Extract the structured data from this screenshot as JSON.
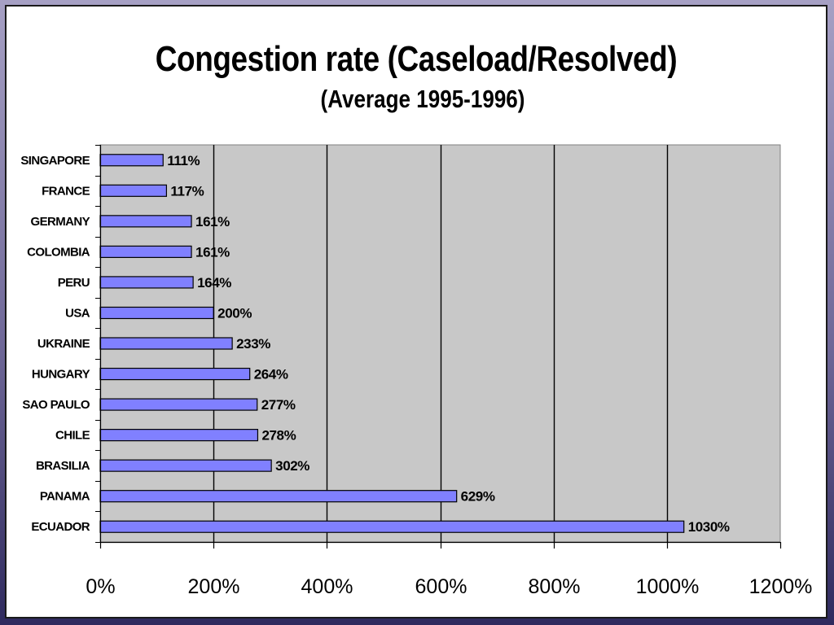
{
  "chart_data": {
    "type": "bar",
    "orientation": "horizontal",
    "title": "Congestion rate (Caseload/Resolved)",
    "subtitle": "(Average 1995-1996)",
    "categories": [
      "SINGAPORE",
      "FRANCE",
      "GERMANY",
      "COLOMBIA",
      "PERU",
      "USA",
      "UKRAINE",
      "HUNGARY",
      "SAO PAULO",
      "CHILE",
      "BRASILIA",
      "PANAMA",
      "ECUADOR"
    ],
    "values": [
      111,
      117,
      161,
      161,
      164,
      200,
      233,
      264,
      277,
      278,
      302,
      629,
      1030
    ],
    "data_labels": [
      "111%",
      "117%",
      "161%",
      "161%",
      "164%",
      "200%",
      "233%",
      "264%",
      "277%",
      "278%",
      "302%",
      "629%",
      "1030%"
    ],
    "xlim": [
      0,
      1200
    ],
    "x_ticks": [
      0,
      200,
      400,
      600,
      800,
      1000,
      1200
    ],
    "x_tick_labels": [
      "0%",
      "200%",
      "400%",
      "600%",
      "800%",
      "1000%",
      "1200%"
    ],
    "xlabel": "",
    "ylabel": "",
    "grid": true,
    "legend": "none",
    "colors": {
      "bar": "#8080ff",
      "plot_background": "#c8c8c8",
      "gridline": "#000000"
    }
  }
}
